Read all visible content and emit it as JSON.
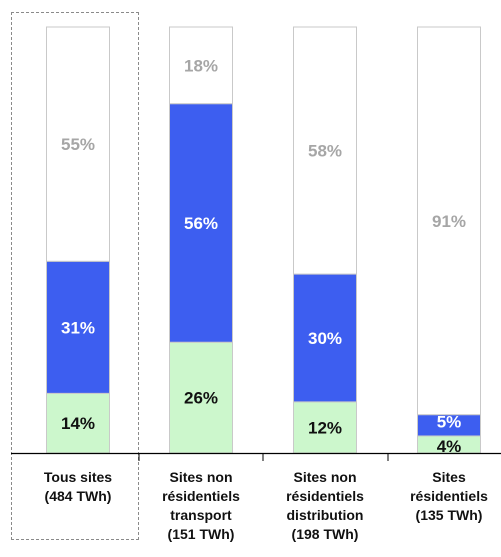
{
  "chart_data": {
    "type": "bar",
    "stacked": true,
    "normalized": true,
    "categories": [
      [
        "Tous sites",
        "(484 TWh)"
      ],
      [
        "Sites non",
        "résidentiels",
        "transport",
        "(151 TWh)"
      ],
      [
        "Sites non",
        "résidentiels",
        "distribution",
        "(198 TWh)"
      ],
      [
        "Sites",
        "résidentiels",
        "(135 TWh)"
      ]
    ],
    "series": [
      {
        "color": "#ccf7cc",
        "label_color": "#111111",
        "values": [
          14,
          26,
          12,
          4
        ],
        "labels": [
          "14%",
          "26%",
          "12%",
          "4%"
        ]
      },
      {
        "color": "#3d5ef0",
        "label_color": "#ffffff",
        "values": [
          31,
          56,
          30,
          5
        ],
        "labels": [
          "31%",
          "56%",
          "30%",
          "5%"
        ]
      },
      {
        "color": "#ffffff",
        "label_color": "#a6a6a6",
        "values": [
          55,
          18,
          58,
          91
        ],
        "labels": [
          "55%",
          "18%",
          "58%",
          "91%"
        ]
      }
    ],
    "ylim": [
      0,
      100
    ],
    "grid": false,
    "legend": "none",
    "highlighted_category": 0
  }
}
